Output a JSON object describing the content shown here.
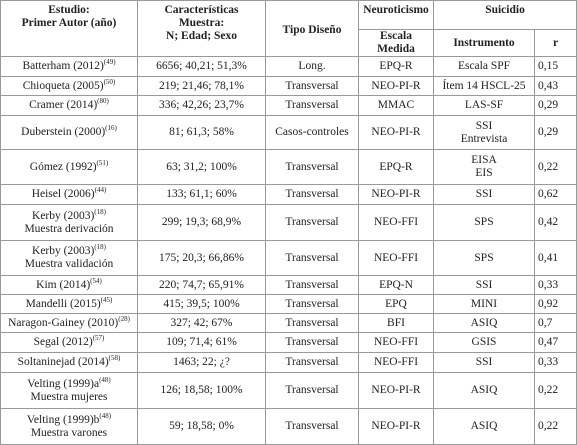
{
  "table": {
    "header": {
      "study": [
        "Estudio:",
        "Primer Autor (año)"
      ],
      "sample": [
        "Características",
        "Muestra:",
        "N; Edad; Sexo"
      ],
      "design": "Tipo Diseño",
      "neuro": "Neuroticismo",
      "suicide": "Suicidio",
      "scale": "Escala Medida",
      "instrument": "Instrumento",
      "r": "r"
    },
    "rows": [
      {
        "study": "Batterham (2012)",
        "ref": "(49)",
        "sample": "6656; 40,21; 51,3%",
        "design": "Long.",
        "scale": "EPQ-R",
        "instrument": [
          "Escala SPF"
        ],
        "r": "0,15"
      },
      {
        "study": "Chioqueta (2005)",
        "ref": "(50)",
        "sample": "219; 21,46; 78,1%",
        "design": "Transversal",
        "scale": "NEO-PI-R",
        "instrument": [
          "Ítem 14 HSCL-25"
        ],
        "r": "0,43"
      },
      {
        "study": "Cramer (2014)",
        "ref": "(80)",
        "sample": "336; 42,26; 23,7%",
        "design": "Transversal",
        "scale": "MMAC",
        "instrument": [
          "LAS-SF"
        ],
        "r": "0,29"
      },
      {
        "study": "Duberstein (2000)",
        "ref": "(16)",
        "sample": "81; 61,3; 58%",
        "design": "Casos-controles",
        "scale": "NEO-PI-R",
        "instrument": [
          "SSI",
          "Entrevista"
        ],
        "r": "0,29"
      },
      {
        "study": "Gómez (1992)",
        "ref": "(51)",
        "sample": "63; 31,2; 100%",
        "design": "Transversal",
        "scale": "EPQ-R",
        "instrument": [
          "EISA",
          "EIS"
        ],
        "r": "0,22"
      },
      {
        "study": "Heisel (2006)",
        "ref": "(44)",
        "sample": "133; 61,1; 60%",
        "design": "Transversal",
        "scale": "NEO-PI-R",
        "instrument": [
          "SSI"
        ],
        "r": "0,62"
      },
      {
        "study": "Kerby (2003)",
        "ref": "(18)",
        "note": "Muestra derivación",
        "sample": "299; 19,3; 68,9%",
        "design": "Transversal",
        "scale": "NEO-FFI",
        "instrument": [
          "SPS"
        ],
        "r": "0,42"
      },
      {
        "study": "Kerby (2003)",
        "ref": "(18)",
        "note": "Muestra validación",
        "sample": "175; 20,3; 66,86%",
        "design": "Transversal",
        "scale": "NEO-FFI",
        "instrument": [
          "SPS"
        ],
        "r": "0,41"
      },
      {
        "study": "Kim (2014)",
        "ref": "(54)",
        "sample": "220; 74,7; 65,91%",
        "design": "Transversal",
        "scale": "EPQ-N",
        "instrument": [
          "SSI"
        ],
        "r": "0,33"
      },
      {
        "study": "Mandelli (2015)",
        "ref": "(45)",
        "sample": "415; 39,5; 100%",
        "design": "Transversal",
        "scale": "EPQ",
        "instrument": [
          "MINI"
        ],
        "r": "0,92"
      },
      {
        "study": "Naragon-Gainey (2010)",
        "ref": "(28)",
        "sample": "327; 42; 67%",
        "design": "Transversal",
        "scale": "BFI",
        "instrument": [
          "ASIQ"
        ],
        "r": "0,7"
      },
      {
        "study": "Segal (2012)",
        "ref": "(57)",
        "sample": "109; 71,4; 61%",
        "design": "Transversal",
        "scale": "NEO-FFI",
        "instrument": [
          "GSIS"
        ],
        "r": "0,47"
      },
      {
        "study": "Soltaninejad (2014)",
        "ref": "(58)",
        "sample": "1463; 22; ¿?",
        "design": "Transversal",
        "scale": "NEO-FFI",
        "instrument": [
          "SSI"
        ],
        "r": "0,33"
      },
      {
        "study": "Velting (1999)a",
        "ref": "(48)",
        "note": "Muestra mujeres",
        "sample": "126; 18,58; 100%",
        "design": "Transversal",
        "scale": "NEO-PI-R",
        "instrument": [
          "ASIQ"
        ],
        "r": "0,22"
      },
      {
        "study": "Velting (1999)b",
        "ref": "(48)",
        "note": "Muestra varones",
        "sample": "59; 18,58; 0%",
        "design": "Transversal",
        "scale": "NEO-PI-R",
        "instrument": [
          "ASIQ"
        ],
        "r": "0,22"
      }
    ]
  }
}
